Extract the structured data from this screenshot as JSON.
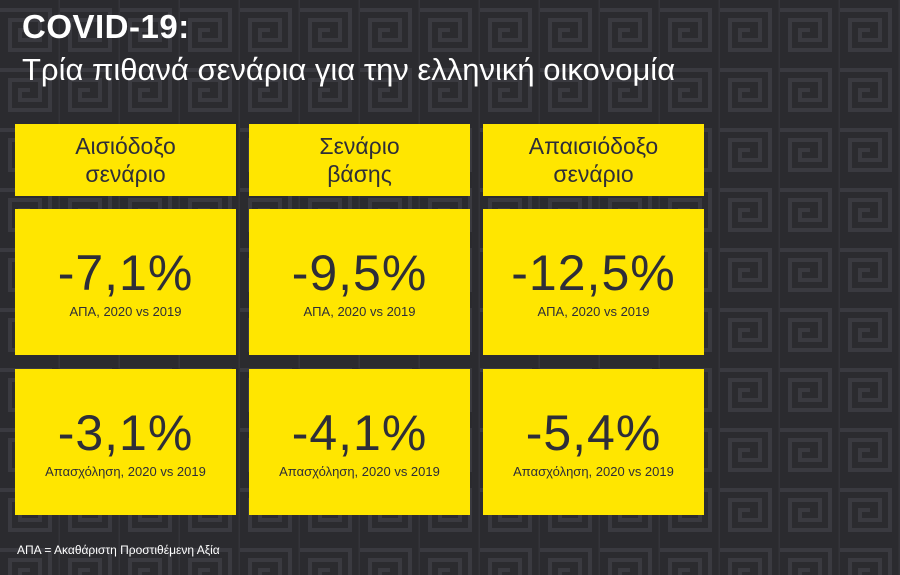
{
  "title": "COVID-19:",
  "subtitle": "Τρία πιθανά σενάρια για την ελληνική οικονομία",
  "scenarios": [
    {
      "label": "Αισιόδοξο\nσενάριο",
      "gdp_value": "-7,1%",
      "gdp_caption": "ΑΠΑ, 2020 vs 2019",
      "employment_value": "-3,1%",
      "employment_caption": "Απασχόληση, 2020 vs 2019"
    },
    {
      "label": "Σενάριο\nβάσης",
      "gdp_value": "-9,5%",
      "gdp_caption": "ΑΠΑ, 2020 vs 2019",
      "employment_value": "-4,1%",
      "employment_caption": "Απασχόληση, 2020 vs 2019"
    },
    {
      "label": "Απαισιόδοξο\nσενάριο",
      "gdp_value": "-12,5%",
      "gdp_caption": "ΑΠΑ, 2020 vs 2019",
      "employment_value": "-5,4%",
      "employment_caption": "Απασχόληση, 2020 vs 2019"
    }
  ],
  "footnote": "ΑΠΑ = Ακαθάριστη Προστιθέμενη Αξία",
  "colors": {
    "accent": "#ffe600",
    "background": "#2b2b2f",
    "text_dark": "#2e2e38"
  }
}
